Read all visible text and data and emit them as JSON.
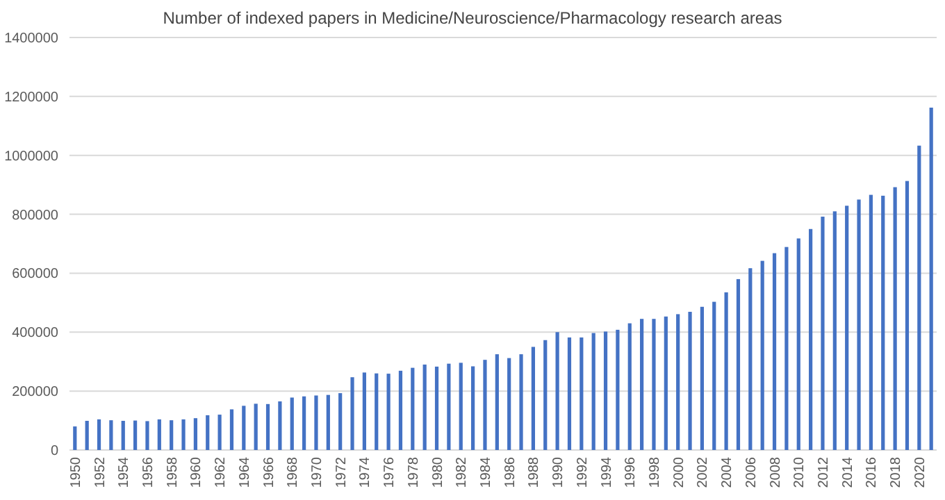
{
  "chart_data": {
    "type": "bar",
    "title": "Number of indexed papers in Medicine/Neuroscience/Pharmacology research areas",
    "categories": [
      "1950",
      null,
      "1952",
      null,
      "1954",
      null,
      "1956",
      null,
      "1958",
      null,
      "1960",
      null,
      "1962",
      null,
      "1964",
      null,
      "1966",
      null,
      "1968",
      null,
      "1970",
      null,
      "1972",
      null,
      "1974",
      null,
      "1976",
      null,
      "1978",
      null,
      "1980",
      null,
      "1982",
      null,
      "1984",
      null,
      "1986",
      null,
      "1988",
      null,
      "1990",
      null,
      "1992",
      null,
      "1994",
      null,
      "1996",
      null,
      "1998",
      null,
      "2000",
      null,
      "2002",
      null,
      "2004",
      null,
      "2006",
      null,
      "2008",
      null,
      "2010",
      null,
      "2012",
      null,
      "2014",
      null,
      "2016",
      null,
      "2018",
      null,
      "2020",
      null
    ],
    "values": [
      80000,
      99000,
      104000,
      101000,
      99000,
      100000,
      98000,
      104000,
      101000,
      104000,
      108000,
      118000,
      120000,
      138000,
      150000,
      157000,
      156000,
      165000,
      178000,
      182000,
      185000,
      187000,
      193000,
      247000,
      263000,
      260000,
      259000,
      269000,
      279000,
      290000,
      283000,
      293000,
      296000,
      284000,
      306000,
      325000,
      312000,
      325000,
      350000,
      373000,
      400000,
      382000,
      382000,
      397000,
      402000,
      408000,
      430000,
      445000,
      445000,
      453000,
      461000,
      469000,
      486000,
      503000,
      535000,
      580000,
      617000,
      642000,
      668000,
      689000,
      718000,
      750000,
      792000,
      810000,
      829000,
      850000,
      866000,
      863000,
      892000,
      913000,
      1033000,
      1162000
    ],
    "color": "#4472c4",
    "ylim": [
      0,
      1400000
    ],
    "yticks": [
      0,
      200000,
      400000,
      600000,
      800000,
      1000000,
      1200000,
      1400000
    ],
    "grid": "y"
  }
}
